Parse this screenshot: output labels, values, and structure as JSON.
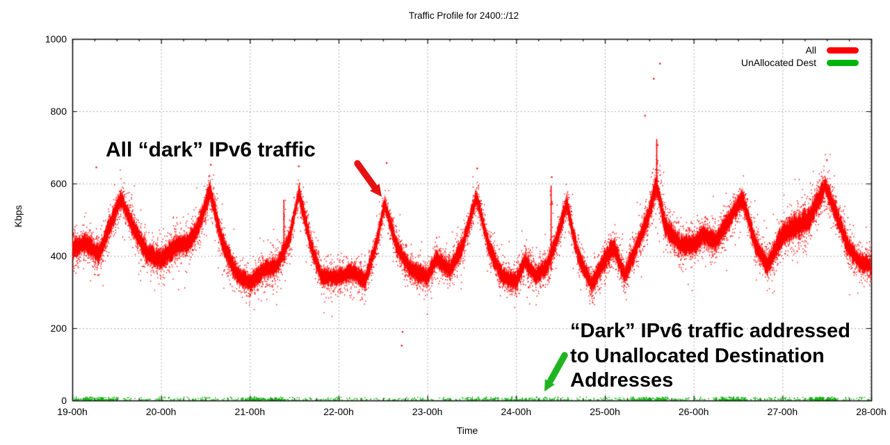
{
  "title": "Traffic Profile for 2400::/12",
  "colors": {
    "background": "#ffffff",
    "axis": "#000000",
    "grid": "#aaaaaa",
    "text": "#000000",
    "all_series": "#ff0000",
    "unallocated_series": "#00a800"
  },
  "chart_data": {
    "type": "scatter",
    "title": "Traffic Profile for 2400::/12",
    "xlabel": "Time",
    "ylabel": "Kbps",
    "xlim": [
      19,
      28
    ],
    "ylim": [
      0,
      1000
    ],
    "x_ticks": [
      "19-00h",
      "20-00h",
      "21-00h",
      "22-00h",
      "23-00h",
      "24-00h",
      "25-00h",
      "26-00h",
      "27-00h",
      "28-00h"
    ],
    "x_tick_hours": [
      19,
      20,
      21,
      22,
      23,
      24,
      25,
      26,
      27,
      28
    ],
    "x_minor_tick_step_hours": 0.25,
    "y_ticks": [
      0,
      200,
      400,
      600,
      800,
      1000
    ],
    "grid": "dotted gray lines at each labeled x and y tick",
    "legend": {
      "position": "top-right-inside",
      "entries": [
        {
          "label": "All",
          "color": "#ff0000"
        },
        {
          "label": "UnAllocated Dest",
          "color": "#00b40c"
        }
      ]
    },
    "series": [
      {
        "name": "All",
        "color": "#ff0000",
        "style": "dense scatter band of per-sample Kbps values, diurnal-looking peaks roughly every hour",
        "band_envelope_hour_center_halfwidth": [
          [
            19.0,
            420,
            45
          ],
          [
            19.15,
            435,
            45
          ],
          [
            19.3,
            405,
            45
          ],
          [
            19.42,
            480,
            45
          ],
          [
            19.55,
            560,
            40
          ],
          [
            19.7,
            470,
            45
          ],
          [
            19.85,
            405,
            45
          ],
          [
            20.0,
            390,
            45
          ],
          [
            20.15,
            425,
            45
          ],
          [
            20.3,
            435,
            45
          ],
          [
            20.42,
            480,
            45
          ],
          [
            20.55,
            580,
            45
          ],
          [
            20.7,
            430,
            45
          ],
          [
            20.85,
            350,
            40
          ],
          [
            21.0,
            325,
            40
          ],
          [
            21.15,
            360,
            40
          ],
          [
            21.3,
            370,
            40
          ],
          [
            21.45,
            450,
            40
          ],
          [
            21.55,
            575,
            40
          ],
          [
            21.7,
            420,
            40
          ],
          [
            21.8,
            345,
            40
          ],
          [
            22.0,
            340,
            40
          ],
          [
            22.15,
            355,
            40
          ],
          [
            22.3,
            330,
            40
          ],
          [
            22.42,
            430,
            40
          ],
          [
            22.52,
            545,
            35
          ],
          [
            22.65,
            430,
            40
          ],
          [
            22.8,
            365,
            40
          ],
          [
            23.0,
            340,
            40
          ],
          [
            23.1,
            395,
            40
          ],
          [
            23.25,
            360,
            40
          ],
          [
            23.4,
            430,
            40
          ],
          [
            23.55,
            565,
            35
          ],
          [
            23.7,
            420,
            40
          ],
          [
            23.85,
            340,
            40
          ],
          [
            24.0,
            330,
            40
          ],
          [
            24.1,
            385,
            40
          ],
          [
            24.22,
            345,
            40
          ],
          [
            24.35,
            370,
            40
          ],
          [
            24.46,
            450,
            40
          ],
          [
            24.57,
            545,
            40
          ],
          [
            24.7,
            400,
            40
          ],
          [
            24.85,
            320,
            40
          ],
          [
            25.0,
            390,
            45
          ],
          [
            25.1,
            425,
            45
          ],
          [
            25.22,
            345,
            40
          ],
          [
            25.35,
            420,
            45
          ],
          [
            25.5,
            520,
            45
          ],
          [
            25.58,
            600,
            50
          ],
          [
            25.68,
            480,
            45
          ],
          [
            25.85,
            430,
            45
          ],
          [
            26.0,
            430,
            45
          ],
          [
            26.1,
            460,
            45
          ],
          [
            26.25,
            440,
            45
          ],
          [
            26.4,
            500,
            45
          ],
          [
            26.55,
            560,
            45
          ],
          [
            26.7,
            430,
            45
          ],
          [
            26.83,
            370,
            45
          ],
          [
            27.0,
            460,
            50
          ],
          [
            27.15,
            480,
            55
          ],
          [
            27.3,
            500,
            55
          ],
          [
            27.48,
            595,
            45
          ],
          [
            27.6,
            520,
            45
          ],
          [
            27.75,
            420,
            45
          ],
          [
            27.88,
            380,
            40
          ],
          [
            28.0,
            375,
            40
          ]
        ],
        "spikes_hour_from_to_kbps": [
          [
            21.38,
            380,
            555
          ],
          [
            24.39,
            360,
            595
          ],
          [
            25.58,
            560,
            723
          ]
        ],
        "outlier_points_hour_kbps": [
          [
            19.27,
            645
          ],
          [
            20.56,
            652
          ],
          [
            21.55,
            648
          ],
          [
            22.54,
            657
          ],
          [
            22.71,
            152
          ],
          [
            22.72,
            190
          ],
          [
            23.56,
            642
          ],
          [
            24.4,
            618
          ],
          [
            25.45,
            788
          ],
          [
            25.55,
            890
          ],
          [
            25.62,
            932
          ],
          [
            27.5,
            665
          ]
        ]
      },
      {
        "name": "UnAllocated Dest",
        "color": "#00a800",
        "style": "sparse scatter hugging the zero line",
        "value_range_kbps": [
          0,
          8
        ],
        "cluster_hours": [
          [
            19.0,
            19.5
          ],
          [
            20.9,
            21.4
          ],
          [
            23.4,
            24.6
          ],
          [
            25.3,
            25.7
          ],
          [
            26.3,
            26.6
          ],
          [
            27.3,
            27.6
          ]
        ],
        "spike_hours": [
          19.15,
          21.05,
          23.95,
          26.45
        ],
        "spike_max_kbps": 14
      }
    ],
    "annotations": [
      {
        "id": "all-dark-traffic",
        "lines": [
          "All “dark” IPv6 traffic"
        ],
        "arrow_color": "#e61212",
        "arrow_points_to": "peak of red band near 22-30h"
      },
      {
        "id": "unallocated-dest-traffic",
        "lines": [
          "“Dark” IPv6 traffic addressed",
          "to Unallocated Destination",
          "Addresses"
        ],
        "arrow_color": "#21b421",
        "arrow_points_to": "green near-zero series at bottom"
      }
    ]
  }
}
